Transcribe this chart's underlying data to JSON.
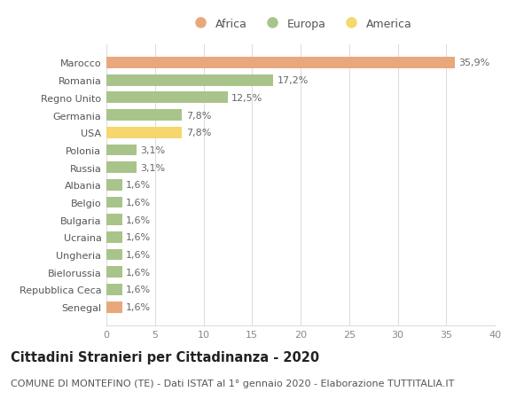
{
  "countries": [
    "Marocco",
    "Romania",
    "Regno Unito",
    "Germania",
    "USA",
    "Polonia",
    "Russia",
    "Albania",
    "Belgio",
    "Bulgaria",
    "Ucraina",
    "Ungheria",
    "Bielorussia",
    "Repubblica Ceca",
    "Senegal"
  ],
  "values": [
    35.9,
    17.2,
    12.5,
    7.8,
    7.8,
    3.1,
    3.1,
    1.6,
    1.6,
    1.6,
    1.6,
    1.6,
    1.6,
    1.6,
    1.6
  ],
  "labels": [
    "35,9%",
    "17,2%",
    "12,5%",
    "7,8%",
    "7,8%",
    "3,1%",
    "3,1%",
    "1,6%",
    "1,6%",
    "1,6%",
    "1,6%",
    "1,6%",
    "1,6%",
    "1,6%",
    "1,6%"
  ],
  "continent": [
    "Africa",
    "Europa",
    "Europa",
    "Europa",
    "America",
    "Europa",
    "Europa",
    "Europa",
    "Europa",
    "Europa",
    "Europa",
    "Europa",
    "Europa",
    "Europa",
    "Africa"
  ],
  "colors": {
    "Africa": "#E8A87C",
    "Europa": "#A8C48A",
    "America": "#F5D76E"
  },
  "xlim": [
    0,
    40
  ],
  "xticks": [
    0,
    5,
    10,
    15,
    20,
    25,
    30,
    35,
    40
  ],
  "title": "Cittadini Stranieri per Cittadinanza - 2020",
  "subtitle": "COMUNE DI MONTEFINO (TE) - Dati ISTAT al 1° gennaio 2020 - Elaborazione TUTTITALIA.IT",
  "background_color": "#ffffff",
  "grid_color": "#dddddd",
  "bar_height": 0.65,
  "title_fontsize": 10.5,
  "subtitle_fontsize": 8,
  "label_fontsize": 8,
  "tick_fontsize": 8,
  "legend_fontsize": 9
}
